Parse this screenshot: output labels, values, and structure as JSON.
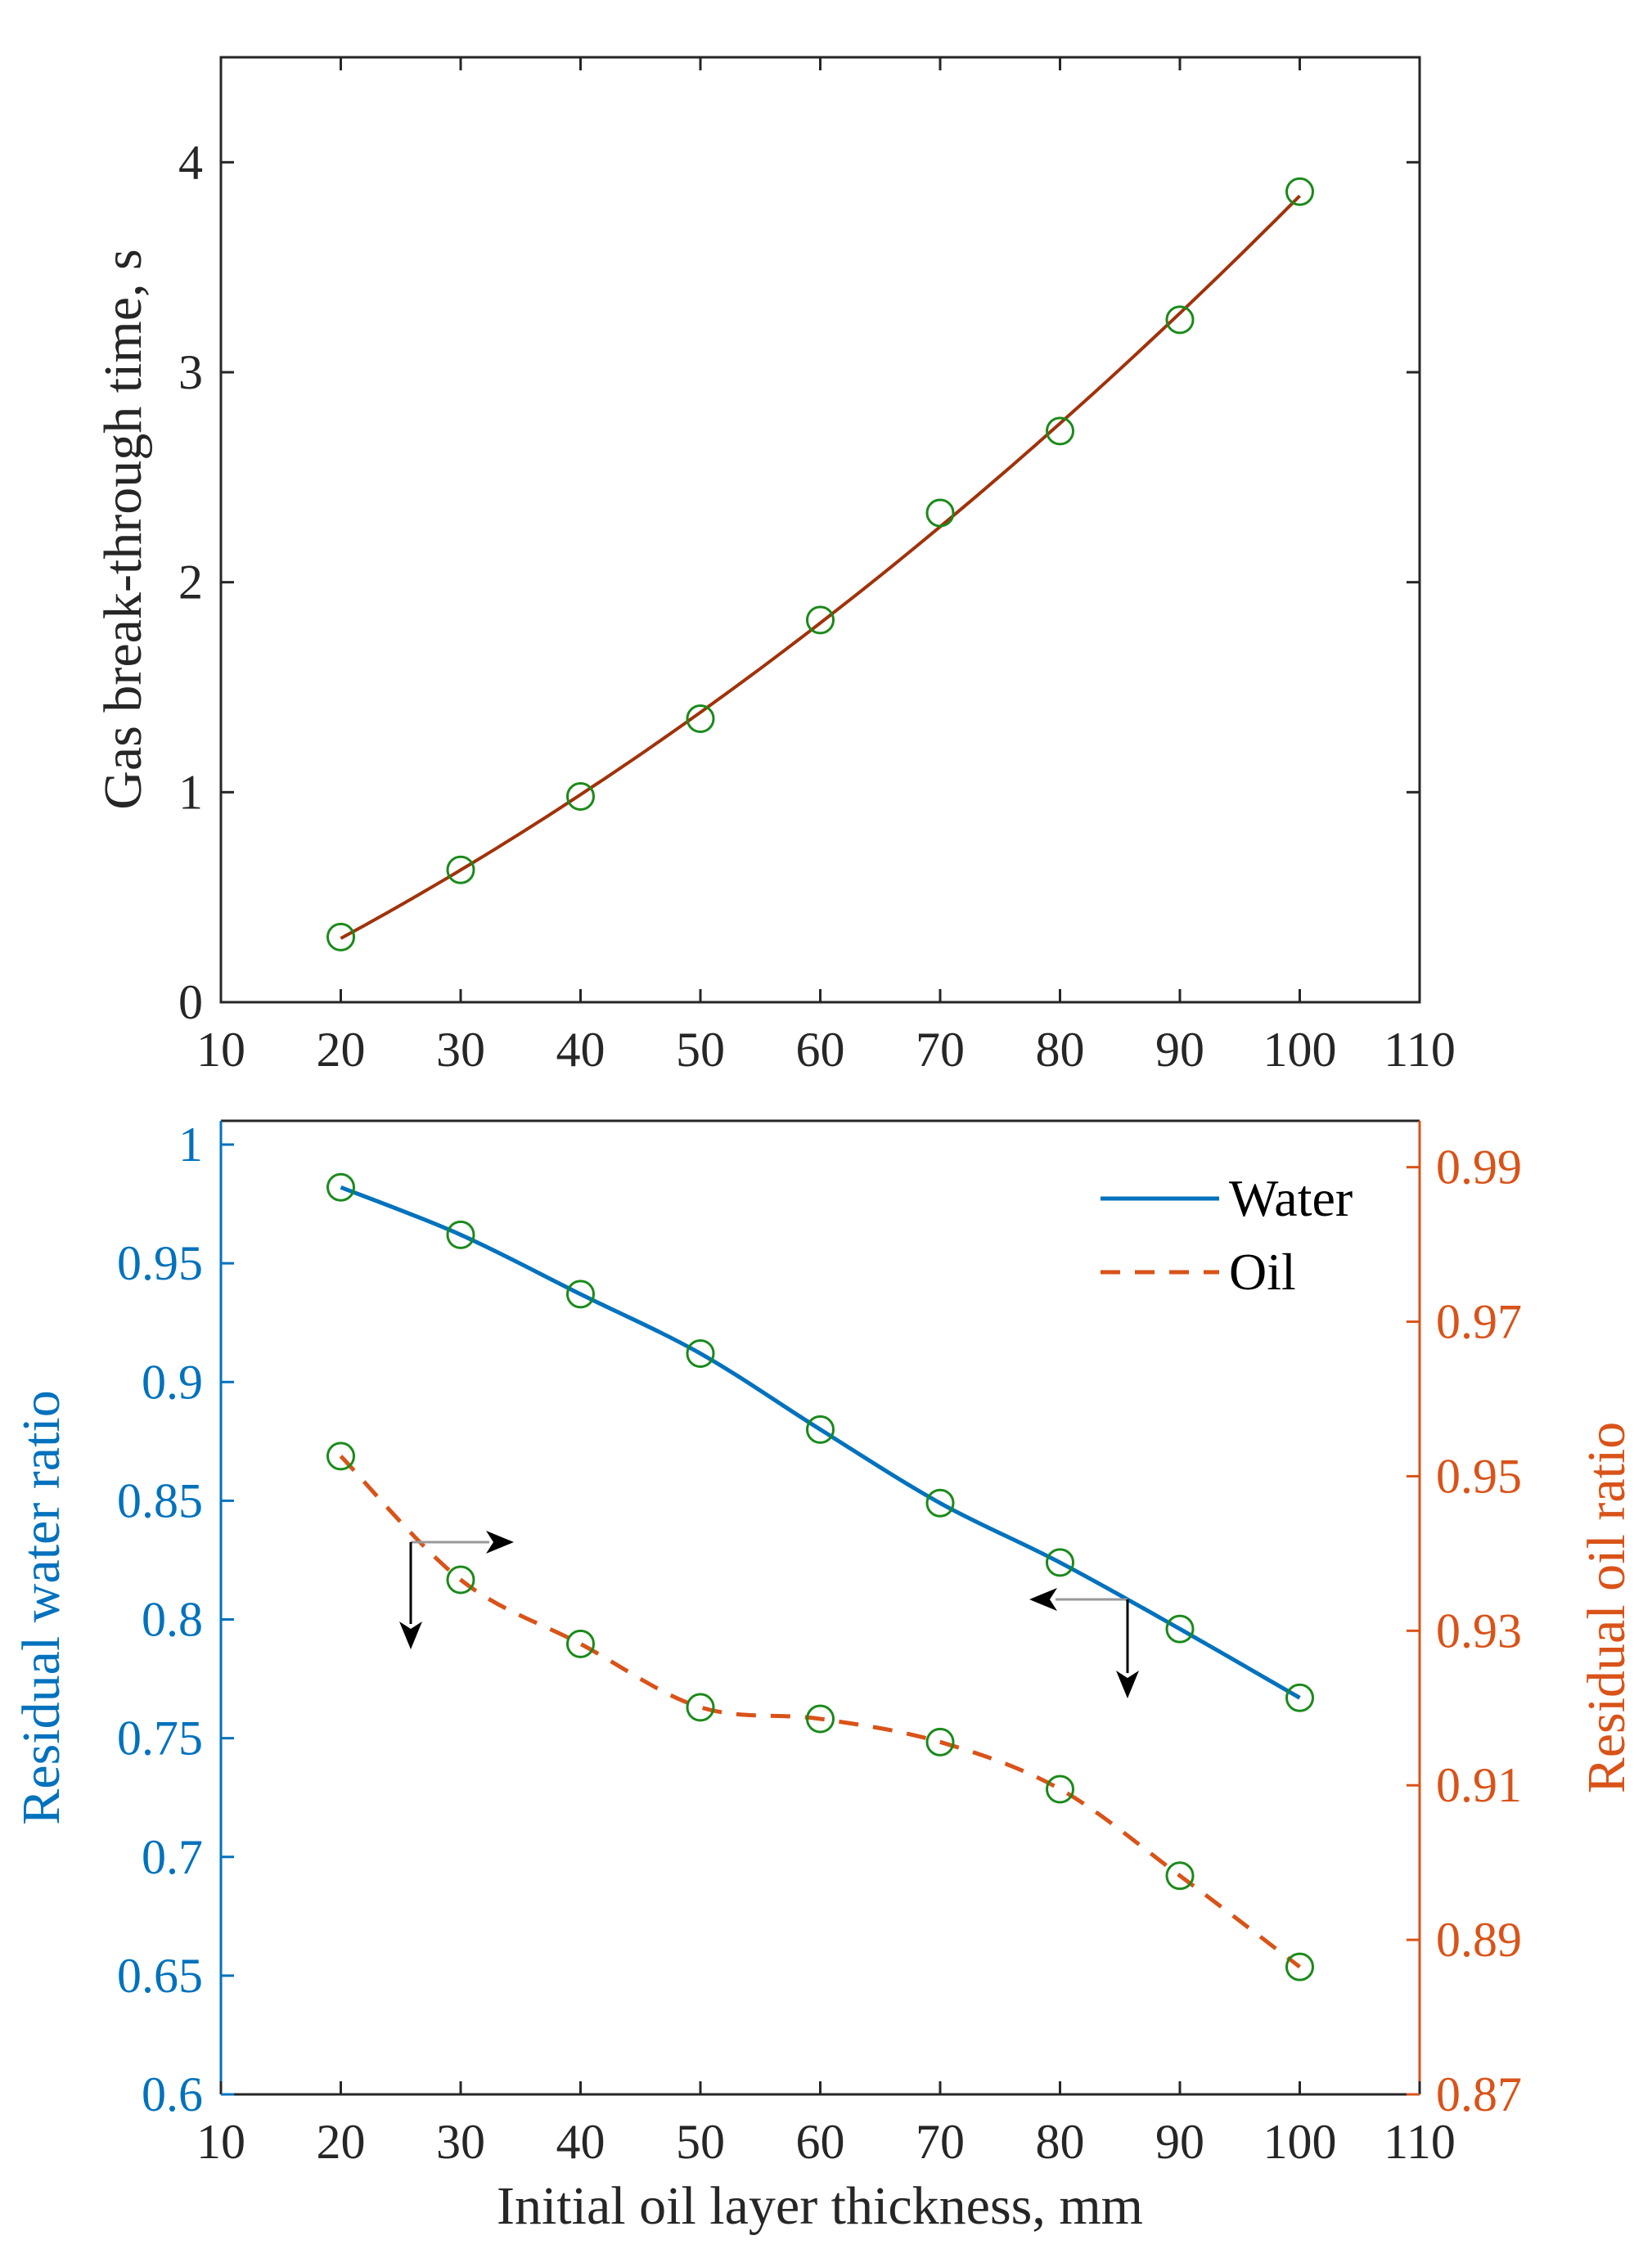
{
  "colors": {
    "axis": "#262626",
    "fit_top": "#a0320a",
    "marker": "#1a8a1a",
    "water": "#0072bd",
    "oil": "#d95319",
    "arrow": "#000000",
    "arrow_stem": "#999999"
  },
  "chart_data": [
    {
      "type": "line",
      "xlabel": "",
      "ylabel": "Gas break-through time, s",
      "xlim": [
        10,
        110
      ],
      "ylim": [
        0,
        4.5
      ],
      "xticks": [
        "10",
        "20",
        "30",
        "40",
        "50",
        "60",
        "70",
        "80",
        "90",
        "100",
        "110"
      ],
      "yticks": [
        "0",
        "1",
        "2",
        "3",
        "4"
      ],
      "grid": false,
      "series": [
        {
          "style": "markers-and-fit-line",
          "x": [
            20,
            30,
            40,
            50,
            60,
            70,
            80,
            90,
            100
          ],
          "y": [
            0.31,
            0.63,
            0.98,
            1.35,
            1.82,
            2.33,
            2.72,
            3.25,
            3.86
          ]
        }
      ]
    },
    {
      "type": "line",
      "xlabel": "Initial oil layer thickness, mm",
      "ylabel": "Residual water ratio",
      "y2label": "Residual oil ratio",
      "xlim": [
        10,
        110
      ],
      "ylim": [
        0.6,
        1.01
      ],
      "y2lim": [
        0.87,
        0.996
      ],
      "xticks": [
        "10",
        "20",
        "30",
        "40",
        "50",
        "60",
        "70",
        "80",
        "90",
        "100",
        "110"
      ],
      "yticks": [
        "0.6",
        "0.65",
        "0.7",
        "0.75",
        "0.8",
        "0.85",
        "0.9",
        "0.95",
        "1"
      ],
      "y2ticks": [
        "0.87",
        "0.89",
        "0.91",
        "0.93",
        "0.95",
        "0.97",
        "0.99"
      ],
      "legend": "top-right",
      "grid": false,
      "series": [
        {
          "name": "Water",
          "axis": "left",
          "line": "solid",
          "x": [
            20,
            30,
            40,
            50,
            60,
            70,
            80,
            90,
            100
          ],
          "y": [
            0.982,
            0.962,
            0.937,
            0.912,
            0.88,
            0.849,
            0.824,
            0.796,
            0.767
          ]
        },
        {
          "name": "Oil",
          "axis": "right",
          "line": "dashed",
          "x": [
            20,
            30,
            40,
            50,
            60,
            70,
            80,
            90,
            100
          ],
          "y": [
            0.9526,
            0.9366,
            0.9283,
            0.9201,
            0.9186,
            0.9156,
            0.9095,
            0.8983,
            0.8865
          ]
        }
      ]
    }
  ]
}
